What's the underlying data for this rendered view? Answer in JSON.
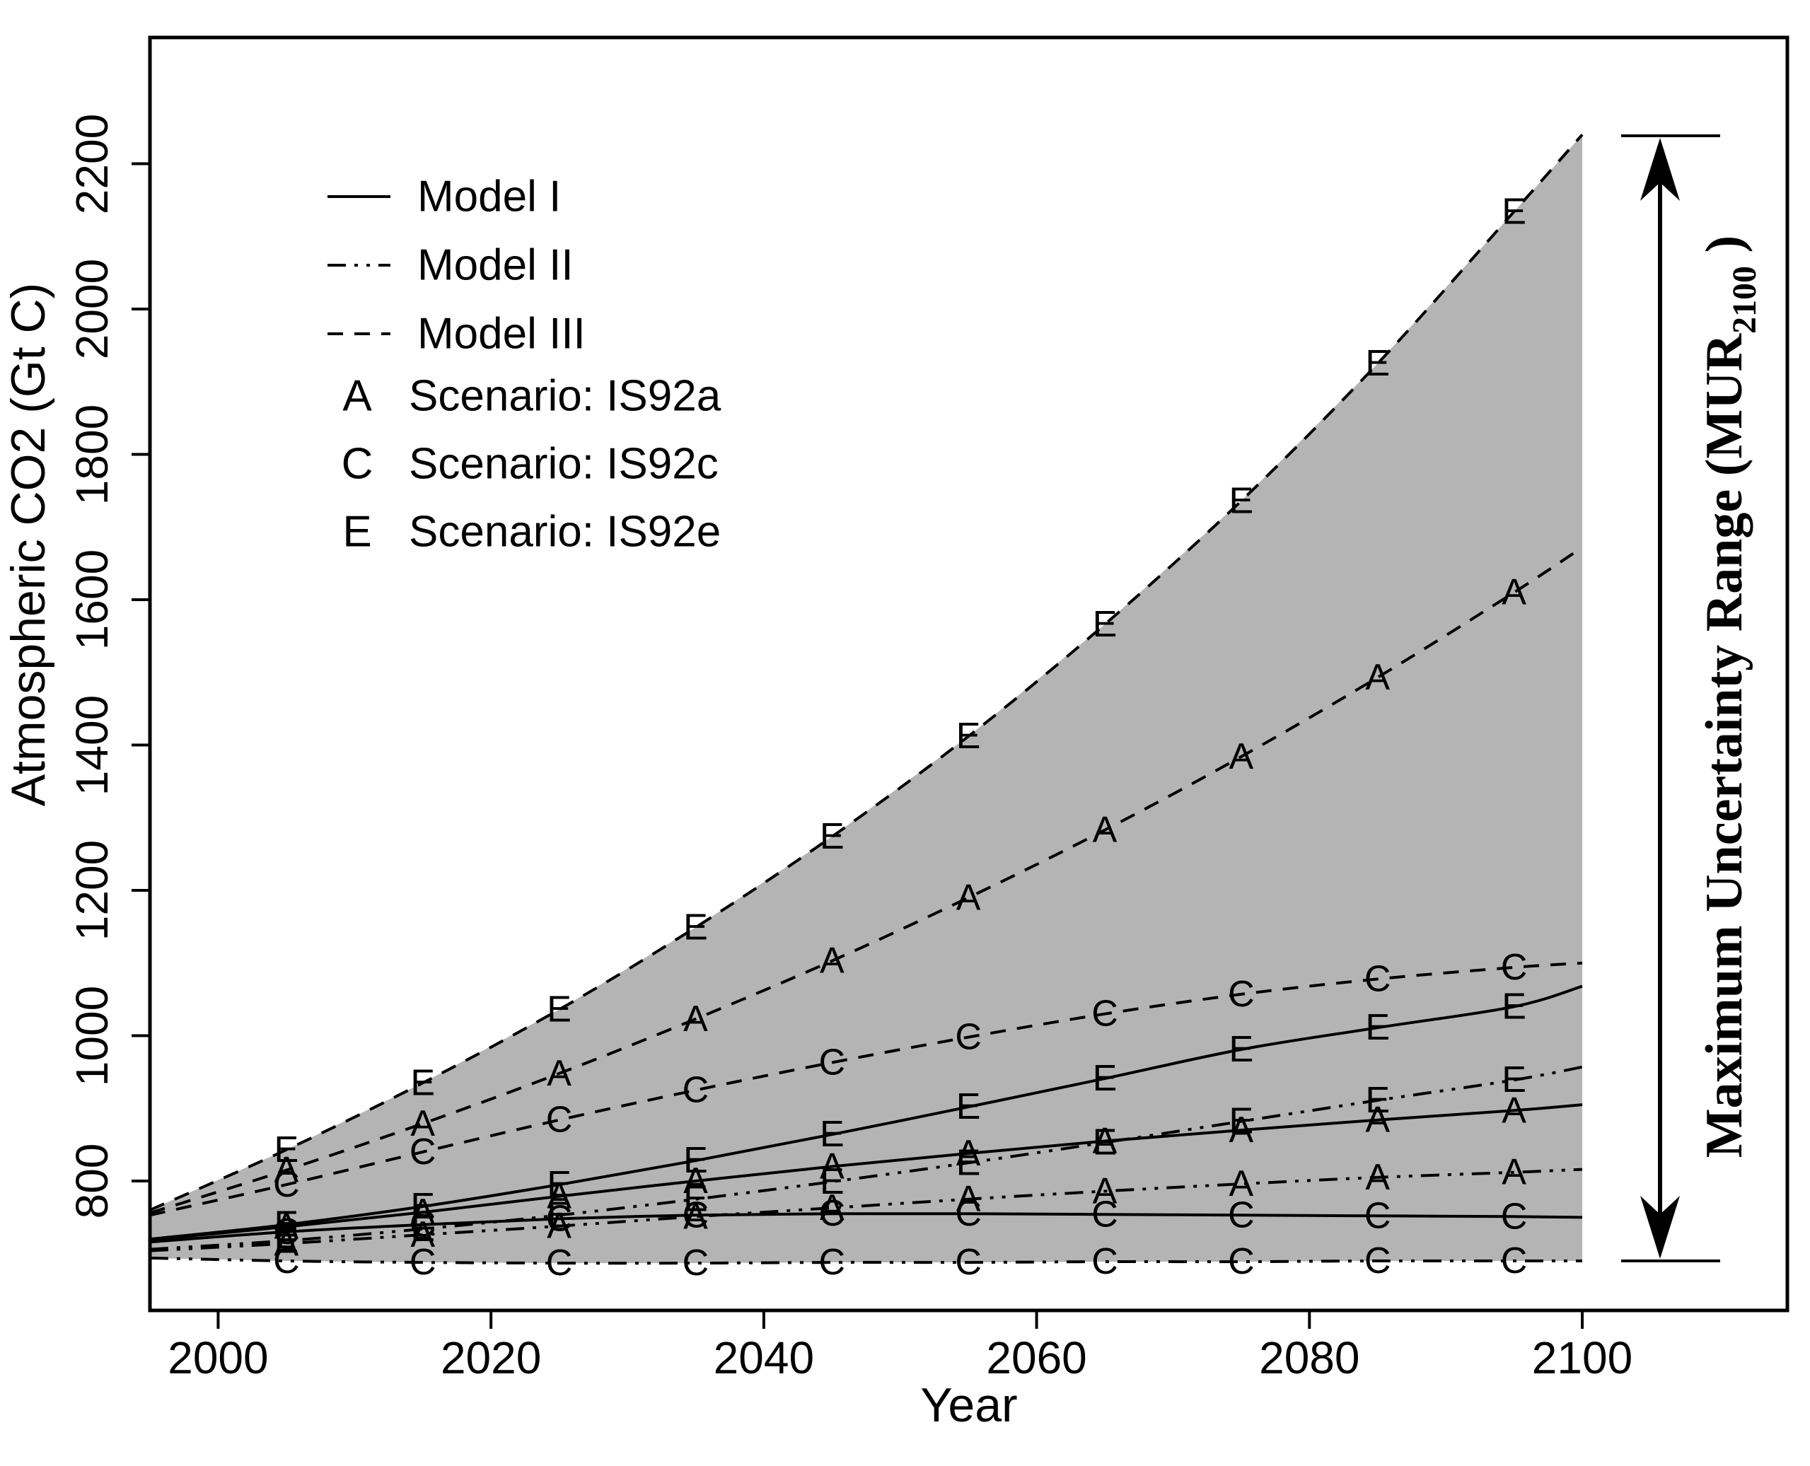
{
  "colors": {
    "line": "#000000",
    "envelope_fill": "#b4b4b4",
    "background": "#ffffff"
  },
  "axes": {
    "x": {
      "label": "Year",
      "ticks": [
        2000,
        2020,
        2040,
        2060,
        2080,
        2100
      ],
      "range": [
        1995,
        2115
      ]
    },
    "y": {
      "label": "Atmospheric CO2 (Gt C)",
      "ticks": [
        800,
        1000,
        1200,
        1400,
        1600,
        1800,
        2000,
        2200
      ],
      "range": [
        620,
        2375
      ]
    }
  },
  "legend": {
    "models": [
      {
        "label": "Model I",
        "style": "solid"
      },
      {
        "label": "Model II",
        "style": "dashdotdot"
      },
      {
        "label": "Model III",
        "style": "dashed"
      }
    ],
    "scenarios": [
      {
        "letter": "A",
        "label": "Scenario: IS92a"
      },
      {
        "letter": "C",
        "label": "Scenario: IS92c"
      },
      {
        "letter": "E",
        "label": "Scenario: IS92e"
      }
    ]
  },
  "annotation": {
    "label_main": "Maximum Uncertainty Range (MUR",
    "label_sub": "2100",
    "label_close": ")"
  },
  "chart_data": {
    "type": "line",
    "title": "",
    "xlabel": "Year",
    "ylabel": "Atmospheric CO2 (Gt C)",
    "x": [
      1995,
      2005,
      2015,
      2025,
      2035,
      2045,
      2055,
      2065,
      2075,
      2085,
      2095,
      2100
    ],
    "marker_years": [
      2005,
      2015,
      2025,
      2035,
      2045,
      2055,
      2065,
      2075,
      2085,
      2095
    ],
    "xlim": [
      1995,
      2115
    ],
    "ylim": [
      620,
      2375
    ],
    "grid": false,
    "legend_position": "top-left",
    "series": [
      {
        "name": "Model III IS92e",
        "model": "Model III",
        "scenario": "IS92e",
        "marker": "E",
        "style": "dashed",
        "values": [
          760,
          843,
          935,
          1036,
          1149,
          1274,
          1412,
          1566,
          1736,
          1925,
          2134,
          2240
        ]
      },
      {
        "name": "Model III IS92a",
        "model": "Model III",
        "scenario": "IS92a",
        "marker": "A",
        "style": "dashed",
        "values": [
          756,
          815,
          879,
          948,
          1023,
          1103,
          1190,
          1283,
          1384,
          1493,
          1610,
          1672
        ]
      },
      {
        "name": "Model III IS92c",
        "model": "Model III",
        "scenario": "IS92c",
        "marker": "C",
        "style": "dashed",
        "values": [
          753,
          795,
          840,
          884,
          925,
          963,
          998,
          1030,
          1057,
          1078,
          1094,
          1100
        ]
      },
      {
        "name": "Model I IS92e",
        "model": "Model I",
        "scenario": "IS92e",
        "marker": "E",
        "style": "solid",
        "values": [
          720,
          740,
          765,
          795,
          828,
          864,
          902,
          941,
          981,
          1011,
          1040,
          1068
        ]
      },
      {
        "name": "Model I IS92a",
        "model": "Model I",
        "scenario": "IS92a",
        "marker": "A",
        "style": "solid",
        "values": [
          719,
          737,
          757,
          779,
          800,
          820,
          838,
          855,
          870,
          884,
          897,
          905
        ]
      },
      {
        "name": "Model I IS92c",
        "model": "Model I",
        "scenario": "IS92c",
        "marker": "C",
        "style": "solid",
        "values": [
          716,
          730,
          740,
          748,
          753,
          755,
          755,
          754,
          753,
          752,
          751,
          750
        ]
      },
      {
        "name": "Model II IS92e",
        "model": "Model II",
        "scenario": "IS92e",
        "marker": "E",
        "style": "dashdotdot",
        "values": [
          706,
          718,
          734,
          753,
          775,
          799,
          825,
          853,
          882,
          911,
          939,
          957
        ]
      },
      {
        "name": "Model II IS92a",
        "model": "Model II",
        "scenario": "IS92a",
        "marker": "A",
        "style": "dashdotdot",
        "values": [
          704,
          714,
          726,
          738,
          751,
          763,
          775,
          786,
          796,
          805,
          812,
          816
        ]
      },
      {
        "name": "Model II IS92c",
        "model": "Model II",
        "scenario": "IS92c",
        "marker": "C",
        "style": "dashdotdot",
        "values": [
          694,
          690,
          688,
          687,
          687,
          688,
          688,
          689,
          689,
          690,
          690,
          690
        ]
      }
    ],
    "envelope": {
      "upper_series": "Model III IS92e",
      "lower_series": "Model II IS92c",
      "max_at_2100": 2240,
      "min_at_2100": 690
    }
  }
}
